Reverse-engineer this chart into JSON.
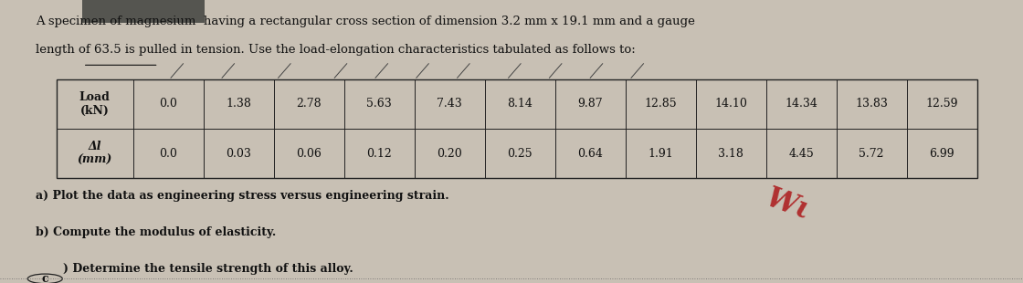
{
  "bg_color": "#c8c0b4",
  "paper_color": "#e8e4dc",
  "title_line1": "A specimen of magnesium  having a rectangular cross section of dimension 3.2 mm x 19.1 mm and a gauge",
  "title_line2": "length of 63.5 is pulled in tension. Use the load-elongation characteristics tabulated as follows to:",
  "load_header": "Load\n(kN)",
  "dl_header": "Δl\n(mm)",
  "load_data": [
    "0.0",
    "1.38",
    "2.78",
    "5.63",
    "7.43",
    "8.14",
    "9.87",
    "12.85",
    "14.10",
    "14.34",
    "13.83",
    "12.59"
  ],
  "dl_data": [
    "0.0",
    "0.03",
    "0.06",
    "0.12",
    "0.20",
    "0.25",
    "0.64",
    "1.91",
    "3.18",
    "4.45",
    "5.72",
    "6.99"
  ],
  "item_a": "a) Plot the data as engineering stress versus engineering strain.",
  "item_b": "b) Compute the modulus of elasticity.",
  "item_c": ") Determine the tensile strength of this alloy.",
  "font_size_title": 9.5,
  "font_size_table": 9.0,
  "font_size_items": 9.0,
  "text_color": "#111111",
  "table_line_color": "#222222",
  "handwriting_color": "#b03030",
  "handwriting_text": "Wι",
  "c_circle_color": "#222222",
  "top_bar_color": "#888880"
}
